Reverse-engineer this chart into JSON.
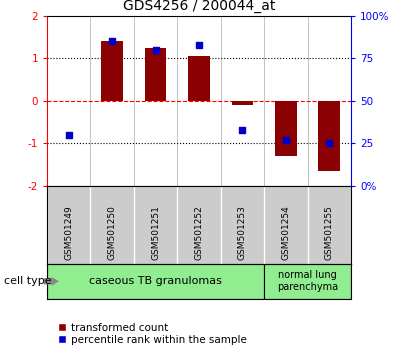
{
  "title": "GDS4256 / 200044_at",
  "samples": [
    "GSM501249",
    "GSM501250",
    "GSM501251",
    "GSM501252",
    "GSM501253",
    "GSM501254",
    "GSM501255"
  ],
  "transformed_count": [
    0.0,
    1.4,
    1.25,
    1.05,
    -0.1,
    -1.3,
    -1.65
  ],
  "percentile_rank": [
    30,
    85,
    80,
    83,
    33,
    27,
    25
  ],
  "ylim_left": [
    -2,
    2
  ],
  "ylim_right": [
    0,
    100
  ],
  "yticks_left": [
    -2,
    -1,
    0,
    1,
    2
  ],
  "yticks_right": [
    0,
    25,
    50,
    75,
    100
  ],
  "ytick_labels_right": [
    "0%",
    "25",
    "50",
    "75",
    "100%"
  ],
  "bar_color": "#8B0000",
  "dot_color": "#0000CD",
  "group1_label": "caseous TB granulomas",
  "group1_indices": [
    0,
    1,
    2,
    3,
    4
  ],
  "group2_label": "normal lung\nparenchyma",
  "group2_indices": [
    5,
    6
  ],
  "group_color": "#90EE90",
  "cell_type_label": "cell type",
  "legend_bar_label": "transformed count",
  "legend_dot_label": "percentile rank within the sample",
  "bar_width": 0.5,
  "figsize": [
    3.98,
    3.54
  ],
  "dpi": 100
}
